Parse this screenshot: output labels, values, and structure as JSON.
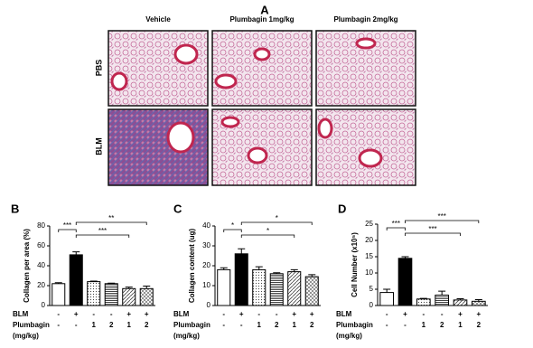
{
  "figure": {
    "panel_label": "A",
    "columns": [
      "Vehicle",
      "Plumbagin 1mg/kg",
      "Plumbagin 2mg/kg"
    ],
    "rows": [
      "PBS",
      "BLM"
    ]
  },
  "treatment_table": [
    {
      "label": "BLM",
      "cells": [
        "-",
        "+",
        "-",
        "-",
        "+",
        "+"
      ]
    },
    {
      "label": "Plumbagin",
      "unit": "(mg/kg)",
      "cells": [
        "-",
        "-",
        "1",
        "2",
        "1",
        "2"
      ]
    }
  ],
  "chart_data": [
    {
      "type": "bar",
      "panel_label": "B",
      "ylabel": "Collagen per area (%)",
      "values": [
        22,
        51,
        24,
        22,
        17,
        17
      ],
      "errors": [
        1,
        3,
        0.5,
        0.5,
        1.5,
        2.5
      ],
      "ylim": [
        0,
        80
      ],
      "yticks": [
        0,
        20,
        40,
        60,
        80
      ],
      "bar_fills": [
        "#ffffff",
        "#000000",
        "dots",
        "hlines",
        "diag",
        "cross"
      ],
      "annotations": [
        {
          "from": 0,
          "to": 1,
          "label": "***"
        },
        {
          "from": 1,
          "to": 4,
          "label": "***"
        },
        {
          "from": 1,
          "to": 5,
          "label": "**"
        }
      ]
    },
    {
      "type": "bar",
      "panel_label": "C",
      "ylabel": "Collagen content (ug)",
      "values": [
        18,
        26,
        18,
        16,
        17,
        14.5
      ],
      "errors": [
        1,
        2.5,
        1.5,
        0.5,
        1,
        1
      ],
      "ylim": [
        0,
        40
      ],
      "yticks": [
        0,
        10,
        20,
        30,
        40
      ],
      "bar_fills": [
        "#ffffff",
        "#000000",
        "dots",
        "hlines",
        "diag",
        "cross"
      ],
      "annotations": [
        {
          "from": 0,
          "to": 1,
          "label": "*"
        },
        {
          "from": 1,
          "to": 4,
          "label": "*"
        },
        {
          "from": 1,
          "to": 5,
          "label": "*"
        }
      ]
    },
    {
      "type": "bar",
      "panel_label": "D",
      "ylabel": "Cell Number (x10⁵)",
      "values": [
        4,
        14.5,
        2,
        3.2,
        1.7,
        1.3
      ],
      "errors": [
        1,
        0.5,
        0.2,
        1.2,
        0.4,
        0.5
      ],
      "ylim": [
        0,
        25
      ],
      "yticks": [
        0,
        5,
        10,
        15,
        20,
        25
      ],
      "bar_fills": [
        "#ffffff",
        "#000000",
        "dots",
        "hlines",
        "diag",
        "cross"
      ],
      "annotations": [
        {
          "from": 0,
          "to": 1,
          "label": "***"
        },
        {
          "from": 1,
          "to": 4,
          "label": "***"
        },
        {
          "from": 1,
          "to": 5,
          "label": "***"
        }
      ]
    }
  ]
}
